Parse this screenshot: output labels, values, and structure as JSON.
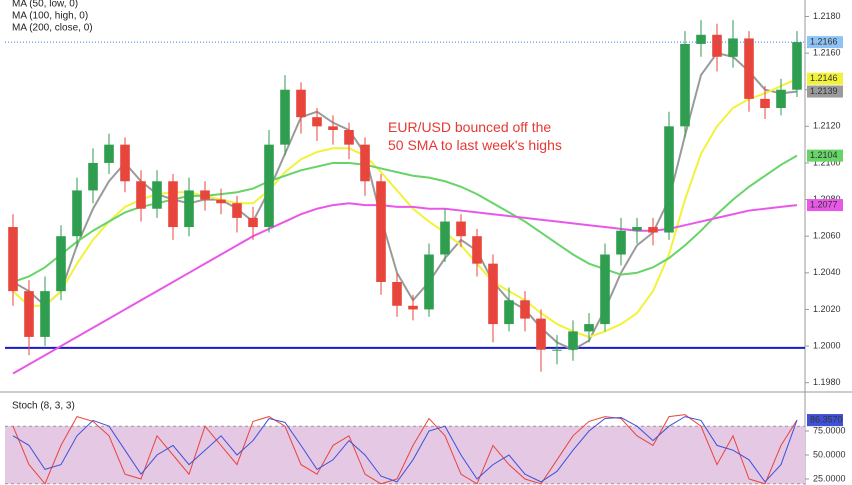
{
  "chart_data": [
    {
      "type": "candlestick",
      "categories": [
        null,
        null,
        null,
        null,
        null,
        null,
        null,
        null,
        null,
        null,
        null,
        null,
        null,
        null,
        null,
        null,
        null,
        null,
        null,
        null,
        null,
        null,
        null,
        null,
        null,
        null,
        null,
        null,
        null,
        null,
        null,
        null,
        null,
        null,
        null,
        null,
        null,
        null,
        null,
        null,
        null,
        null,
        null,
        null,
        null,
        null,
        null,
        null,
        null,
        null
      ],
      "open": [
        1.2065,
        1.203,
        1.2005,
        1.203,
        1.206,
        1.2085,
        1.21,
        1.211,
        1.209,
        1.2075,
        1.209,
        1.2065,
        1.2085,
        1.208,
        1.2078,
        1.207,
        1.2065,
        1.211,
        1.214,
        1.2125,
        1.212,
        1.2118,
        1.211,
        1.209,
        1.2035,
        1.2022,
        1.202,
        1.205,
        1.2068,
        1.206,
        1.2045,
        1.2012,
        1.2025,
        1.2015,
        1.1998,
        1.1998,
        1.2008,
        1.2012,
        1.205,
        1.2063,
        1.2065,
        1.2062,
        1.212,
        1.2165,
        1.217,
        1.2158,
        1.2168,
        1.2135,
        1.213,
        1.214
      ],
      "high": [
        1.2072,
        1.2036,
        1.2038,
        1.2066,
        1.2092,
        1.2108,
        1.2116,
        1.2114,
        1.2096,
        1.2096,
        1.2094,
        1.2092,
        1.209,
        1.2086,
        1.2082,
        1.2076,
        1.2118,
        1.2148,
        1.2144,
        1.213,
        1.2126,
        1.2122,
        1.2114,
        1.2094,
        1.204,
        1.2028,
        1.2056,
        1.2075,
        1.2072,
        1.2064,
        1.205,
        1.2032,
        1.203,
        1.202,
        1.2006,
        1.2014,
        1.2018,
        1.2056,
        1.207,
        1.207,
        1.207,
        1.2128,
        1.2172,
        1.2178,
        1.2176,
        1.2178,
        1.2172,
        1.2142,
        1.2146,
        1.2172
      ],
      "low": [
        1.2022,
        1.1995,
        1.2,
        1.2025,
        1.2054,
        1.2078,
        1.2094,
        1.2084,
        1.2068,
        1.207,
        1.2058,
        1.206,
        1.2074,
        1.2072,
        1.2062,
        1.2058,
        1.2062,
        1.2104,
        1.2116,
        1.2112,
        1.211,
        1.2102,
        1.2082,
        1.2028,
        1.2016,
        1.2014,
        1.2016,
        1.2046,
        1.2054,
        1.2038,
        1.2002,
        1.2008,
        1.2008,
        1.1986,
        1.199,
        1.1992,
        1.2002,
        1.2008,
        1.2044,
        1.2056,
        1.2055,
        1.2058,
        1.2114,
        1.2158,
        1.215,
        1.2152,
        1.2128,
        1.2124,
        1.2126,
        1.2136
      ],
      "close": [
        1.203,
        1.2005,
        1.203,
        1.206,
        1.2085,
        1.21,
        1.211,
        1.209,
        1.2075,
        1.209,
        1.2065,
        1.2085,
        1.208,
        1.2078,
        1.207,
        1.2065,
        1.211,
        1.214,
        1.2125,
        1.212,
        1.2118,
        1.211,
        1.209,
        1.2035,
        1.2022,
        1.202,
        1.205,
        1.2068,
        1.206,
        1.2045,
        1.2012,
        1.2025,
        1.2015,
        1.1998,
        1.1998,
        1.2008,
        1.2012,
        1.205,
        1.2063,
        1.2065,
        1.2062,
        1.212,
        1.2165,
        1.217,
        1.2158,
        1.2168,
        1.2135,
        1.213,
        1.214,
        1.2166
      ],
      "last_label": "1.2166",
      "up_color": "#2f9e4f",
      "down_color": "#e8453c",
      "series": [
        {
          "color": "#9a9a9a",
          "last_label": "1.2139",
          "values": [
            1.2035,
            1.203,
            1.2022,
            1.203,
            1.2055,
            1.2075,
            1.209,
            1.21,
            1.209,
            1.2083,
            1.208,
            1.2078,
            1.208,
            1.208,
            1.2075,
            1.2068,
            1.2085,
            1.2105,
            1.2125,
            1.2128,
            1.2122,
            1.2118,
            1.2105,
            1.207,
            1.204,
            1.2025,
            1.2035,
            1.2048,
            1.2058,
            1.2052,
            1.2035,
            1.2025,
            1.202,
            1.201,
            1.2002,
            1.1998,
            1.2003,
            1.202,
            1.204,
            1.2055,
            1.2062,
            1.208,
            1.2115,
            1.2148,
            1.216,
            1.2158,
            1.215,
            1.214,
            1.2138,
            1.2139
          ]
        },
        {
          "name": "MA (50, low, 0)",
          "color": "#f2f23a",
          "last_label": "1.2146",
          "values": [
            1.203,
            1.2022,
            1.2022,
            1.203,
            1.2045,
            1.2058,
            1.2068,
            1.2076,
            1.208,
            1.2083,
            1.2084,
            1.2084,
            1.2082,
            1.208,
            1.2078,
            1.2078,
            1.2085,
            1.2095,
            1.2102,
            1.2106,
            1.2108,
            1.2108,
            1.2104,
            1.2095,
            1.2085,
            1.2075,
            1.2068,
            1.2062,
            1.2055,
            1.2045,
            1.2035,
            1.203,
            1.2025,
            1.2018,
            1.2012,
            1.2008,
            1.2005,
            1.2008,
            1.2012,
            1.2018,
            1.203,
            1.205,
            1.208,
            1.2105,
            1.212,
            1.213,
            1.2135,
            1.2138,
            1.2142,
            1.2146
          ]
        },
        {
          "name": "MA (100, high, 0)",
          "color": "#66d466",
          "last_label": "1.2104",
          "values": [
            1.2035,
            1.2038,
            1.2043,
            1.205,
            1.2057,
            1.2063,
            1.2068,
            1.2073,
            1.2076,
            1.2078,
            1.208,
            1.2082,
            1.2082,
            1.2083,
            1.2084,
            1.2086,
            1.209,
            1.2093,
            1.2096,
            1.2098,
            1.21,
            1.21,
            1.2099,
            1.2097,
            1.2095,
            1.2093,
            1.2092,
            1.209,
            1.2087,
            1.2083,
            1.2078,
            1.2073,
            1.2068,
            1.2062,
            1.2056,
            1.205,
            1.2045,
            1.2042,
            1.2039,
            1.204,
            1.2043,
            1.2048,
            1.2055,
            1.2063,
            1.2072,
            1.208,
            1.2087,
            1.2093,
            1.2099,
            1.2104
          ]
        },
        {
          "name": "MA (200, close, 0)",
          "color": "#e858e8",
          "last_label": "1.2077",
          "values": [
            1.1985,
            1.199,
            1.1995,
            1.2,
            1.2005,
            1.201,
            1.2015,
            1.202,
            1.2025,
            1.203,
            1.2035,
            1.204,
            1.2045,
            1.205,
            1.2055,
            1.206,
            1.2064,
            1.2068,
            1.2072,
            1.2075,
            1.2077,
            1.2078,
            1.2077,
            1.2077,
            1.2076,
            1.2076,
            1.2075,
            1.2075,
            1.2074,
            1.2073,
            1.2072,
            1.2071,
            1.207,
            1.2069,
            1.2068,
            1.2067,
            1.2066,
            1.2065,
            1.2064,
            1.2063,
            1.2063,
            1.2064,
            1.2066,
            1.2068,
            1.207,
            1.2072,
            1.2074,
            1.2075,
            1.2076,
            1.2077
          ]
        }
      ],
      "hline": {
        "value": 1.1999,
        "color": "#1a1acc"
      },
      "annotation": [
        "EUR/USD bounced off the",
        "50 SMA to last week's highs"
      ],
      "ylim": [
        1.1976,
        1.2189
      ],
      "yticks": [
        {
          "value": 1.198,
          "label": "1.1980"
        },
        {
          "value": 1.2,
          "label": "1.2000"
        },
        {
          "value": 1.202,
          "label": "1.2020"
        },
        {
          "value": 1.204,
          "label": "1.2040"
        },
        {
          "value": 1.206,
          "label": "1.2060"
        },
        {
          "value": 1.208,
          "label": "1.2080"
        },
        {
          "value": 1.21,
          "label": "1.2100"
        },
        {
          "value": 1.212,
          "label": "1.2120"
        },
        {
          "value": 1.214,
          "label": "1.2140"
        },
        {
          "value": 1.216,
          "label": "1.2160"
        },
        {
          "value": 1.218,
          "label": "1.2180"
        }
      ]
    },
    {
      "type": "line",
      "title": "Stoch (8, 3, 3)",
      "categories": [
        null,
        null,
        null,
        null,
        null,
        null,
        null,
        null,
        null,
        null,
        null,
        null,
        null,
        null,
        null,
        null,
        null,
        null,
        null,
        null,
        null,
        null,
        null,
        null,
        null,
        null,
        null,
        null,
        null,
        null,
        null,
        null,
        null,
        null,
        null,
        null,
        null,
        null,
        null,
        null,
        null,
        null,
        null,
        null,
        null,
        null,
        null,
        null,
        null,
        null
      ],
      "band": [
        20,
        80
      ],
      "band_color": "#e4c8e4",
      "series": [
        {
          "color": "#e8453c",
          "last_label": "86.3595",
          "values": [
            80,
            40,
            20,
            60,
            90,
            85,
            70,
            30,
            25,
            70,
            50,
            30,
            80,
            60,
            40,
            85,
            90,
            80,
            40,
            30,
            60,
            70,
            30,
            20,
            25,
            60,
            88,
            70,
            30,
            20,
            60,
            40,
            25,
            20,
            45,
            70,
            85,
            90,
            88,
            70,
            60,
            90,
            92,
            80,
            40,
            70,
            25,
            20,
            60,
            86.3595
          ]
        },
        {
          "color": "#3f51d8",
          "last_label": "86.3570",
          "values": [
            70,
            60,
            35,
            40,
            70,
            86,
            80,
            55,
            30,
            50,
            60,
            40,
            55,
            70,
            50,
            65,
            88,
            84,
            60,
            35,
            45,
            65,
            50,
            28,
            22,
            45,
            75,
            80,
            50,
            25,
            40,
            50,
            30,
            22,
            33,
            55,
            75,
            88,
            89,
            80,
            65,
            80,
            90,
            86,
            60,
            55,
            45,
            22,
            40,
            86.357
          ]
        }
      ],
      "ylim": [
        18.75,
        112.5
      ],
      "yticks": [
        {
          "value": 25,
          "label": "25.0000"
        },
        {
          "value": 50,
          "label": "50.0000"
        },
        {
          "value": 75,
          "label": "75.0000"
        }
      ]
    }
  ]
}
